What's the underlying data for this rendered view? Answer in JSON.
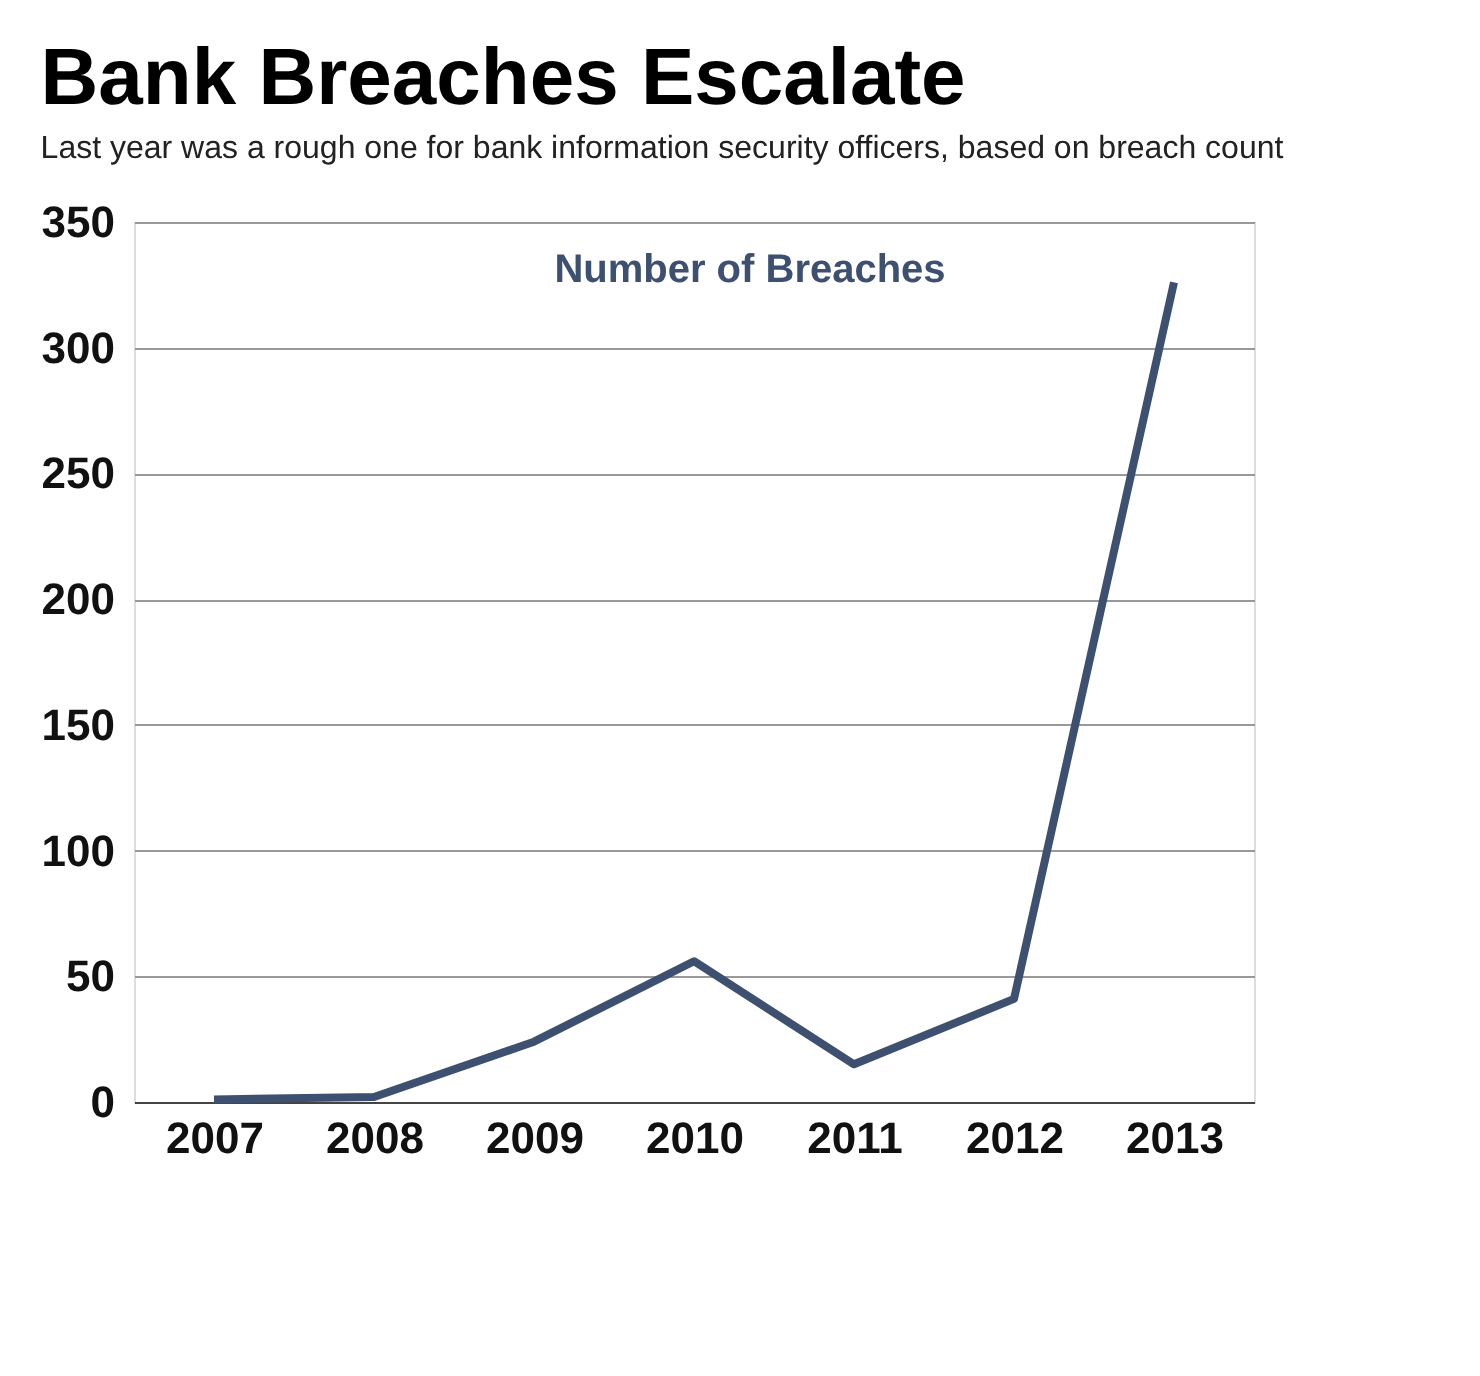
{
  "chart_data": {
    "type": "line",
    "title": "Bank Breaches Escalate",
    "subtitle": "Last year was a rough one for bank information security officers, based on breach count",
    "categories": [
      "2007",
      "2008",
      "2009",
      "2010",
      "2011",
      "2012",
      "2013"
    ],
    "series": [
      {
        "name": "Number of Breaches",
        "color": "#3d5070",
        "values": [
          1,
          2,
          24,
          56,
          15,
          41,
          326
        ]
      }
    ],
    "ylim": [
      0,
      350
    ],
    "yticks": [
      0,
      50,
      100,
      150,
      200,
      250,
      300,
      350
    ],
    "grid": "y",
    "marker": "none",
    "line_style": "solid"
  }
}
